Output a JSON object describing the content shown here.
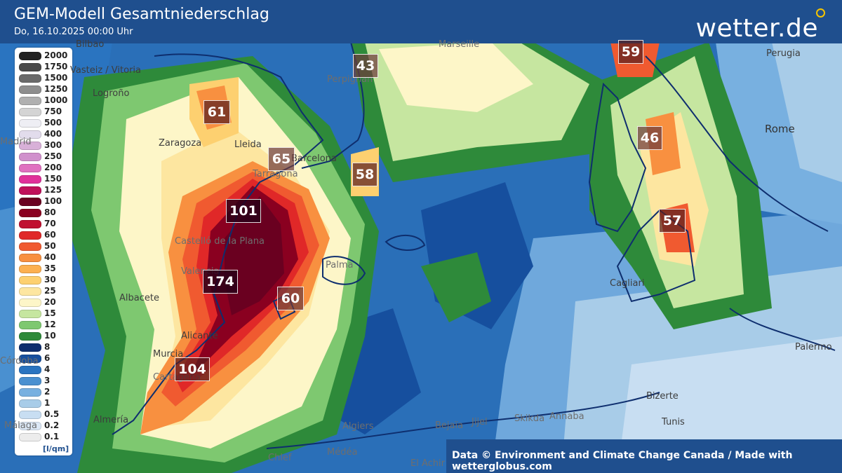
{
  "header": {
    "title": "GEM-Modell Gesamtniederschlag",
    "subtitle": "Do, 16.10.2025 00:00 Uhr",
    "brand": "wetter.de"
  },
  "legend": {
    "unit": "[l/qm]",
    "items": [
      {
        "label": "2000",
        "color": "#222222"
      },
      {
        "label": "1750",
        "color": "#4a4a4a"
      },
      {
        "label": "1500",
        "color": "#6a6a6a"
      },
      {
        "label": "1250",
        "color": "#8e8e8e"
      },
      {
        "label": "1000",
        "color": "#b0b0b0"
      },
      {
        "label": "750",
        "color": "#d4d4d4"
      },
      {
        "label": "500",
        "color": "#eeeef4"
      },
      {
        "label": "400",
        "color": "#e2dcec"
      },
      {
        "label": "300",
        "color": "#d8b0d8"
      },
      {
        "label": "250",
        "color": "#d090cc"
      },
      {
        "label": "200",
        "color": "#e070c0"
      },
      {
        "label": "150",
        "color": "#e0309a"
      },
      {
        "label": "125",
        "color": "#c0105a"
      },
      {
        "label": "100",
        "color": "#6a0020"
      },
      {
        "label": "80",
        "color": "#8a0020"
      },
      {
        "label": "70",
        "color": "#c01030"
      },
      {
        "label": "60",
        "color": "#e02828"
      },
      {
        "label": "50",
        "color": "#f05a30"
      },
      {
        "label": "40",
        "color": "#f89040"
      },
      {
        "label": "35",
        "color": "#fcb050"
      },
      {
        "label": "30",
        "color": "#fdd070"
      },
      {
        "label": "25",
        "color": "#fde6a0"
      },
      {
        "label": "20",
        "color": "#fdf6c8"
      },
      {
        "label": "15",
        "color": "#c6e6a0"
      },
      {
        "label": "12",
        "color": "#7ec870"
      },
      {
        "label": "10",
        "color": "#2e8a3a"
      },
      {
        "label": "8",
        "color": "#0e2e6e"
      },
      {
        "label": "6",
        "color": "#164f9e"
      },
      {
        "label": "4",
        "color": "#2a74c0"
      },
      {
        "label": "3",
        "color": "#4a90d0"
      },
      {
        "label": "2",
        "color": "#78b0e0"
      },
      {
        "label": "1",
        "color": "#a8cce8"
      },
      {
        "label": "0.5",
        "color": "#c8def2"
      },
      {
        "label": "0.2",
        "color": "#dce8f6"
      },
      {
        "label": "0.1",
        "color": "#ececec"
      }
    ]
  },
  "cities": [
    {
      "name": "Bilbao"
    },
    {
      "name": "Vasteiz / Vitoria"
    },
    {
      "name": "Logroño"
    },
    {
      "name": "Zaragoza"
    },
    {
      "name": "Lleida"
    },
    {
      "name": "Barcelona"
    },
    {
      "name": "Tarragona"
    },
    {
      "name": "Perpignan"
    },
    {
      "name": "Marseille"
    },
    {
      "name": "Perugia"
    },
    {
      "name": "Rome"
    },
    {
      "name": "Castelló de la Plana"
    },
    {
      "name": "Valencia"
    },
    {
      "name": "Palma"
    },
    {
      "name": "Albacete"
    },
    {
      "name": "Alicante"
    },
    {
      "name": "Murcia"
    },
    {
      "name": "Cartagena"
    },
    {
      "name": "Almería"
    },
    {
      "name": "Algiers"
    },
    {
      "name": "Médéa"
    },
    {
      "name": "Chlef"
    },
    {
      "name": "El Achir"
    },
    {
      "name": "Bejaïa"
    },
    {
      "name": "Jijel"
    },
    {
      "name": "Skikda"
    },
    {
      "name": "Annaba"
    },
    {
      "name": "Bizerte"
    },
    {
      "name": "Tunis"
    },
    {
      "name": "Cagliari"
    },
    {
      "name": "Palermo"
    },
    {
      "name": "Madrid"
    },
    {
      "name": "Córdoba"
    },
    {
      "name": "Málaga"
    }
  ],
  "values": [
    {
      "label": "43"
    },
    {
      "label": "59"
    },
    {
      "label": "61"
    },
    {
      "label": "65"
    },
    {
      "label": "58"
    },
    {
      "label": "46"
    },
    {
      "label": "101"
    },
    {
      "label": "57"
    },
    {
      "label": "174"
    },
    {
      "label": "60"
    },
    {
      "label": "104"
    }
  ],
  "footer": {
    "credit": "Data © Environment and Climate Change Canada / Made with wetterglobus.com"
  }
}
